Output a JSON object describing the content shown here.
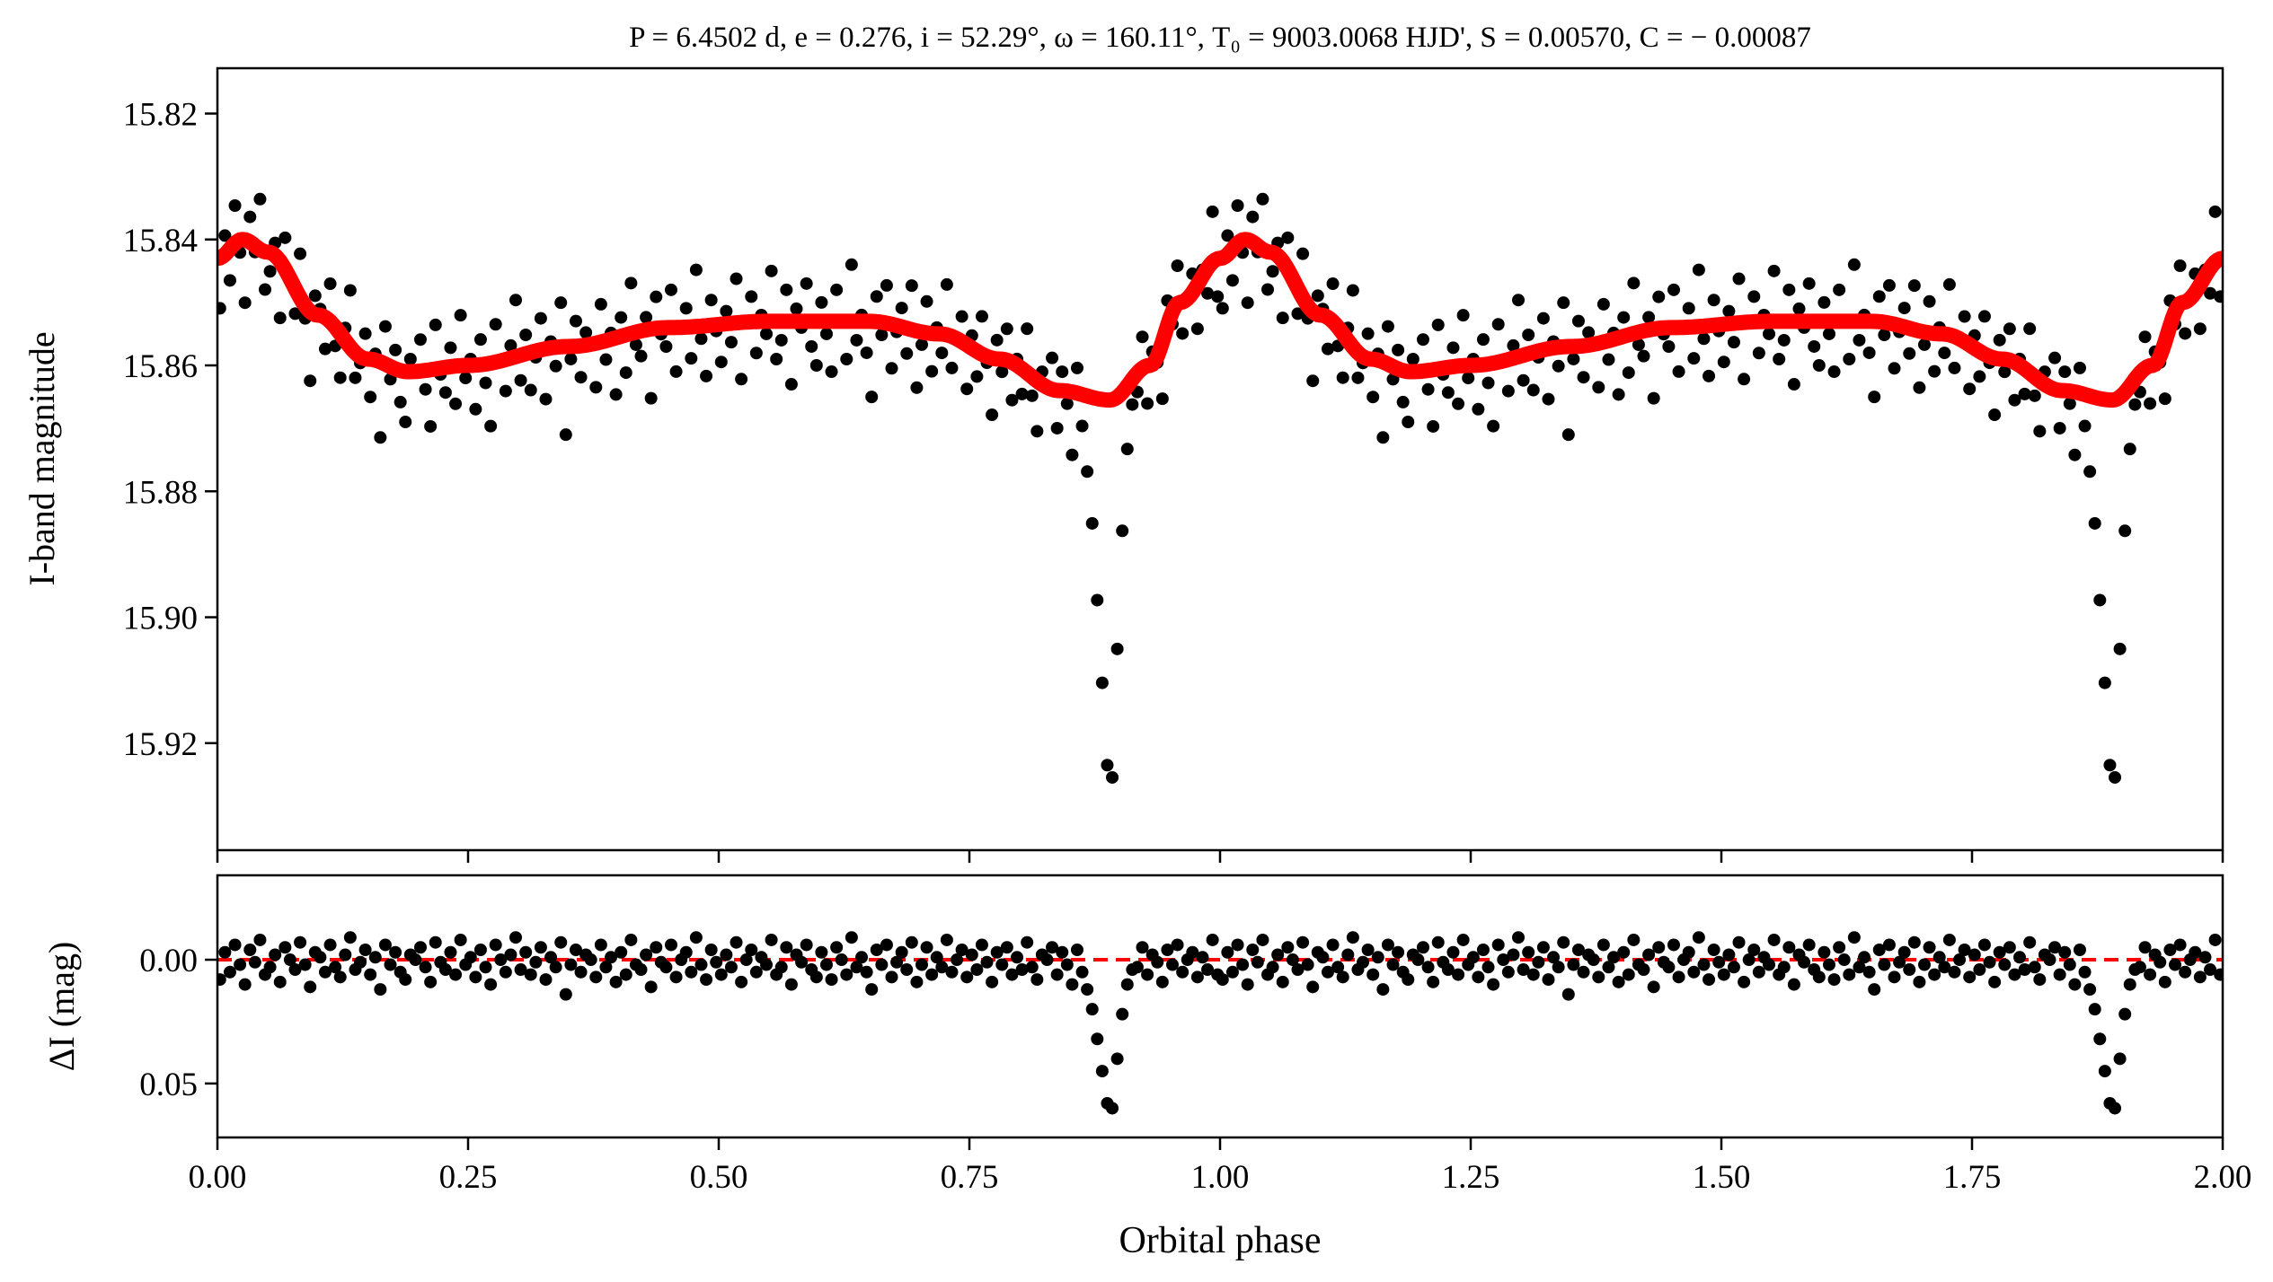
{
  "chart_data": {
    "type": "scatter",
    "title": "P = 6.4502 d, e = 0.276, i = 52.29°, ω = 160.11°, T₀ = 9003.0068 HJD', S = 0.00570, C = − 0.00087",
    "xlabel": "Orbital phase",
    "xlim": [
      0,
      2
    ],
    "xticks": [
      "0.00",
      "0.25",
      "0.50",
      "0.75",
      "1.00",
      "1.25",
      "1.50",
      "1.75",
      "2.00"
    ],
    "panels": [
      {
        "name": "light-curve",
        "ylabel": "I-band magnitude",
        "ylim": [
          15.8128,
          15.937
        ],
        "inverted": true,
        "yticks": [
          "15.82",
          "15.84",
          "15.86",
          "15.88",
          "15.90",
          "15.92"
        ]
      },
      {
        "name": "residuals",
        "ylabel": "ΔI (mag)",
        "ylim": [
          -0.0341,
          0.0718
        ],
        "inverted": true,
        "yticks": [
          "0.00",
          "0.05"
        ]
      }
    ],
    "model_curve": {
      "color": "#ff0000",
      "phase": [
        0.0,
        0.025,
        0.05,
        0.1,
        0.15,
        0.19,
        0.25,
        0.35,
        0.45,
        0.55,
        0.65,
        0.72,
        0.78,
        0.84,
        0.89,
        0.93,
        0.96,
        1.0
      ],
      "mag": [
        15.843,
        15.84,
        15.842,
        15.852,
        15.859,
        15.861,
        15.86,
        15.857,
        15.854,
        15.853,
        15.853,
        15.855,
        15.859,
        15.864,
        15.8655,
        15.86,
        15.85,
        15.843
      ]
    },
    "observations": {
      "color": "#000000",
      "phase_note": "phase_i = (i + 0.5) / 200, plotted at phase and phase + 1",
      "residual_mmag": [
        8,
        -3,
        5,
        -6,
        2,
        10,
        -4,
        1,
        -8,
        6,
        3,
        -2,
        9,
        -5,
        0,
        4,
        -7,
        2,
        11,
        -3,
        -1,
        5,
        -6,
        3,
        7,
        -2,
        -9,
        4,
        1,
        -4,
        6,
        -1,
        12,
        -6,
        2,
        -3,
        5,
        8,
        -2,
        0,
        -5,
        3,
        9,
        -7,
        1,
        4,
        -3,
        6,
        -8,
        2,
        -1,
        7,
        -4,
        3,
        10,
        -6,
        0,
        5,
        -2,
        -9,
        4,
        -3,
        6,
        1,
        -5,
        8,
        -1,
        3,
        -7,
        14,
        2,
        -4,
        5,
        -2,
        0,
        7,
        -6,
        3,
        -1,
        9,
        -3,
        6,
        -8,
        2,
        4,
        -2,
        11,
        -5,
        1,
        3,
        -6,
        7,
        0,
        -3,
        5,
        -9,
        2,
        8,
        -4,
        1,
        6,
        -2,
        3,
        -7,
        9,
        0,
        -4,
        5,
        -1,
        2,
        -8,
        6,
        3,
        -5,
        10,
        -2,
        1,
        -6,
        4,
        7,
        -3,
        2,
        8,
        -5,
        0,
        6,
        -9,
        3,
        -1,
        5,
        12,
        -4,
        2,
        -6,
        7,
        1,
        -3,
        4,
        -7,
        9,
        2,
        -5,
        6,
        -1,
        3,
        -8,
        5,
        0,
        -4,
        7,
        -2,
        4,
        -6,
        1,
        9,
        -3,
        2,
        -5,
        6,
        -1,
        4,
        -7,
        3,
        8,
        -2,
        0,
        -5,
        6,
        -3,
        2,
        10,
        -4,
        5,
        12,
        20,
        32,
        45,
        58,
        60,
        40,
        22,
        10,
        4,
        3,
        -5,
        6,
        -2,
        1,
        9,
        -4,
        2,
        -6,
        5,
        0,
        -3,
        7,
        -1,
        4,
        -8,
        6
      ]
    },
    "zero_line": {
      "value": 0,
      "color": "#ff0000",
      "style": "dashed"
    }
  }
}
